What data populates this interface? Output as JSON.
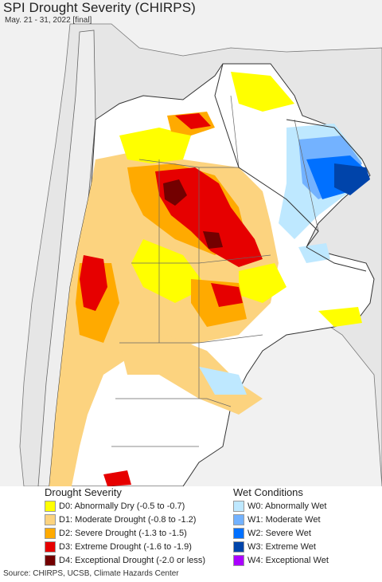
{
  "header": {
    "title": "SPI Drought Severity (CHIRPS)",
    "subtitle": "May. 21 - 31, 2022 [final]"
  },
  "colors": {
    "ocean": "#f1f1f1",
    "land_outside": "#e8e8e8",
    "land": "#ffffff",
    "border": "#555555",
    "coast": "#333333"
  },
  "legend": {
    "drought_title": "Drought Severity",
    "wet_title": "Wet Conditions",
    "drought": [
      {
        "label": "D0: Abnormally Dry (-0.5 to -0.7)",
        "color": "#ffff00"
      },
      {
        "label": "D1: Moderate Drought (-0.8 to -1.2)",
        "color": "#fcd37f"
      },
      {
        "label": "D2: Severe Drought (-1.3 to -1.5)",
        "color": "#ffaa00"
      },
      {
        "label": "D3: Extreme Drought (-1.6 to -1.9)",
        "color": "#e60000"
      },
      {
        "label": "D4: Exceptional Drought (-2.0 or less)",
        "color": "#730000"
      }
    ],
    "wet": [
      {
        "label": "W0: Abnormally Wet",
        "color": "#bee8ff"
      },
      {
        "label": "W1: Moderate Wet",
        "color": "#73b2ff"
      },
      {
        "label": "W2: Severe Wet",
        "color": "#0070ff"
      },
      {
        "label": "W3: Extreme Wet",
        "color": "#0044aa"
      },
      {
        "label": "W4: Exceptional Wet",
        "color": "#aa00ff"
      }
    ]
  },
  "footer": {
    "source": "Source: CHIRPS, UCSB, Climate Hazards Center"
  }
}
